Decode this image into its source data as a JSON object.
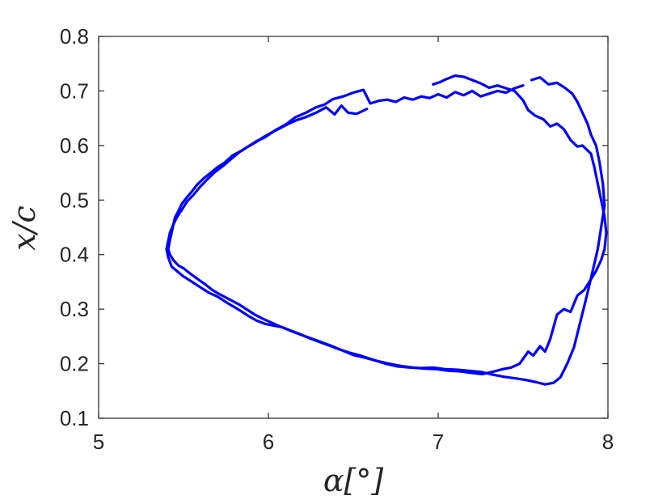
{
  "chart_data": {
    "type": "line",
    "title": "",
    "xlabel": "α[°]",
    "ylabel": "x/c",
    "xlim": [
      5,
      8
    ],
    "ylim": [
      0.1,
      0.8
    ],
    "xticks": [
      "5",
      "6",
      "7",
      "8"
    ],
    "yticks": [
      "0.1",
      "0.2",
      "0.3",
      "0.4",
      "0.5",
      "0.6",
      "0.7",
      "0.8"
    ],
    "grid": false,
    "legend": "none",
    "line_color": "#0000ff",
    "series": [
      {
        "values_xy": [
          [
            6.58,
            0.667
          ],
          [
            6.52,
            0.658
          ],
          [
            6.47,
            0.66
          ],
          [
            6.43,
            0.673
          ],
          [
            6.39,
            0.657
          ],
          [
            6.34,
            0.67
          ],
          [
            6.28,
            0.66
          ],
          [
            6.22,
            0.652
          ],
          [
            6.17,
            0.647
          ],
          [
            6.12,
            0.64
          ],
          [
            6.07,
            0.632
          ],
          [
            6.02,
            0.624
          ],
          [
            5.97,
            0.615
          ],
          [
            5.92,
            0.605
          ],
          [
            5.88,
            0.598
          ],
          [
            5.83,
            0.588
          ],
          [
            5.78,
            0.575
          ],
          [
            5.73,
            0.562
          ],
          [
            5.68,
            0.55
          ],
          [
            5.64,
            0.538
          ],
          [
            5.6,
            0.525
          ],
          [
            5.56,
            0.51
          ],
          [
            5.52,
            0.497
          ],
          [
            5.49,
            0.482
          ],
          [
            5.46,
            0.468
          ],
          [
            5.44,
            0.455
          ],
          [
            5.42,
            0.44
          ],
          [
            5.41,
            0.425
          ],
          [
            5.4,
            0.41
          ],
          [
            5.41,
            0.395
          ],
          [
            5.43,
            0.378
          ],
          [
            5.46,
            0.37
          ],
          [
            5.5,
            0.36
          ],
          [
            5.55,
            0.35
          ],
          [
            5.6,
            0.34
          ],
          [
            5.65,
            0.33
          ],
          [
            5.7,
            0.323
          ],
          [
            5.76,
            0.311
          ],
          [
            5.82,
            0.3
          ],
          [
            5.88,
            0.288
          ],
          [
            5.93,
            0.279
          ],
          [
            5.98,
            0.273
          ],
          [
            6.03,
            0.27
          ],
          [
            6.08,
            0.267
          ],
          [
            6.15,
            0.258
          ],
          [
            6.22,
            0.25
          ],
          [
            6.29,
            0.242
          ],
          [
            6.36,
            0.234
          ],
          [
            6.43,
            0.225
          ],
          [
            6.5,
            0.216
          ],
          [
            6.57,
            0.211
          ],
          [
            6.64,
            0.205
          ],
          [
            6.71,
            0.2
          ],
          [
            6.78,
            0.196
          ],
          [
            6.85,
            0.193
          ],
          [
            6.92,
            0.191
          ],
          [
            6.99,
            0.19
          ],
          [
            7.06,
            0.187
          ],
          [
            7.13,
            0.186
          ],
          [
            7.2,
            0.183
          ],
          [
            7.26,
            0.181
          ],
          [
            7.32,
            0.185
          ],
          [
            7.38,
            0.19
          ],
          [
            7.43,
            0.193
          ],
          [
            7.48,
            0.2
          ],
          [
            7.53,
            0.222
          ],
          [
            7.56,
            0.215
          ],
          [
            7.6,
            0.232
          ],
          [
            7.63,
            0.222
          ],
          [
            7.66,
            0.245
          ],
          [
            7.7,
            0.29
          ],
          [
            7.74,
            0.3
          ],
          [
            7.78,
            0.295
          ],
          [
            7.82,
            0.325
          ],
          [
            7.86,
            0.335
          ],
          [
            7.9,
            0.355
          ],
          [
            7.93,
            0.37
          ],
          [
            7.96,
            0.39
          ],
          [
            7.98,
            0.41
          ],
          [
            7.99,
            0.44
          ],
          [
            7.98,
            0.47
          ],
          [
            7.96,
            0.5
          ],
          [
            7.94,
            0.53
          ],
          [
            7.92,
            0.56
          ],
          [
            7.9,
            0.585
          ],
          [
            7.85,
            0.6
          ],
          [
            7.82,
            0.598
          ],
          [
            7.78,
            0.61
          ],
          [
            7.74,
            0.63
          ],
          [
            7.7,
            0.64
          ],
          [
            7.66,
            0.635
          ],
          [
            7.62,
            0.648
          ],
          [
            7.57,
            0.655
          ],
          [
            7.53,
            0.665
          ],
          [
            7.5,
            0.683
          ],
          [
            7.45,
            0.7
          ],
          [
            7.4,
            0.705
          ],
          [
            7.35,
            0.71
          ],
          [
            7.3,
            0.706
          ],
          [
            7.25,
            0.714
          ],
          [
            7.2,
            0.72
          ],
          [
            7.15,
            0.726
          ],
          [
            7.1,
            0.728
          ],
          [
            7.05,
            0.722
          ],
          [
            7.01,
            0.716
          ],
          [
            6.97,
            0.712
          ]
        ]
      },
      {
        "values_xy": [
          [
            7.5,
            0.71
          ],
          [
            7.45,
            0.705
          ],
          [
            7.4,
            0.697
          ],
          [
            7.35,
            0.7
          ],
          [
            7.3,
            0.695
          ],
          [
            7.25,
            0.69
          ],
          [
            7.2,
            0.7
          ],
          [
            7.15,
            0.692
          ],
          [
            7.1,
            0.698
          ],
          [
            7.05,
            0.688
          ],
          [
            7.0,
            0.694
          ],
          [
            6.95,
            0.687
          ],
          [
            6.9,
            0.69
          ],
          [
            6.85,
            0.684
          ],
          [
            6.8,
            0.688
          ],
          [
            6.75,
            0.68
          ],
          [
            6.7,
            0.684
          ],
          [
            6.65,
            0.682
          ],
          [
            6.6,
            0.677
          ],
          [
            6.56,
            0.702
          ],
          [
            6.5,
            0.697
          ],
          [
            6.44,
            0.69
          ],
          [
            6.38,
            0.685
          ],
          [
            6.33,
            0.675
          ],
          [
            6.28,
            0.67
          ],
          [
            6.22,
            0.66
          ],
          [
            6.16,
            0.652
          ],
          [
            6.1,
            0.638
          ],
          [
            6.04,
            0.628
          ],
          [
            5.98,
            0.615
          ],
          [
            5.93,
            0.608
          ],
          [
            5.88,
            0.598
          ],
          [
            5.84,
            0.59
          ],
          [
            5.79,
            0.582
          ],
          [
            5.74,
            0.568
          ],
          [
            5.7,
            0.56
          ],
          [
            5.66,
            0.55
          ],
          [
            5.62,
            0.54
          ],
          [
            5.58,
            0.528
          ],
          [
            5.55,
            0.516
          ],
          [
            5.52,
            0.505
          ],
          [
            5.49,
            0.493
          ],
          [
            5.47,
            0.48
          ],
          [
            5.45,
            0.468
          ],
          [
            5.44,
            0.455
          ],
          [
            5.43,
            0.44
          ],
          [
            5.42,
            0.427
          ],
          [
            5.41,
            0.41
          ],
          [
            5.42,
            0.4
          ],
          [
            5.44,
            0.39
          ],
          [
            5.47,
            0.38
          ],
          [
            5.5,
            0.375
          ],
          [
            5.54,
            0.365
          ],
          [
            5.58,
            0.356
          ],
          [
            5.63,
            0.345
          ],
          [
            5.67,
            0.335
          ],
          [
            5.72,
            0.326
          ],
          [
            5.77,
            0.318
          ],
          [
            5.83,
            0.308
          ],
          [
            5.88,
            0.298
          ],
          [
            5.92,
            0.29
          ],
          [
            5.97,
            0.282
          ],
          [
            6.02,
            0.275
          ],
          [
            6.07,
            0.268
          ],
          [
            6.12,
            0.262
          ],
          [
            6.18,
            0.255
          ],
          [
            6.24,
            0.247
          ],
          [
            6.3,
            0.24
          ],
          [
            6.36,
            0.233
          ],
          [
            6.42,
            0.226
          ],
          [
            6.48,
            0.22
          ],
          [
            6.55,
            0.214
          ],
          [
            6.62,
            0.207
          ],
          [
            6.69,
            0.2
          ],
          [
            6.76,
            0.195
          ],
          [
            6.83,
            0.193
          ],
          [
            6.9,
            0.192
          ],
          [
            6.97,
            0.193
          ],
          [
            7.04,
            0.19
          ],
          [
            7.11,
            0.189
          ],
          [
            7.18,
            0.187
          ],
          [
            7.25,
            0.185
          ],
          [
            7.32,
            0.18
          ],
          [
            7.39,
            0.176
          ],
          [
            7.46,
            0.173
          ],
          [
            7.52,
            0.17
          ],
          [
            7.58,
            0.166
          ],
          [
            7.63,
            0.162
          ],
          [
            7.68,
            0.165
          ],
          [
            7.72,
            0.175
          ],
          [
            7.76,
            0.2
          ],
          [
            7.8,
            0.23
          ],
          [
            7.84,
            0.28
          ],
          [
            7.88,
            0.33
          ],
          [
            7.91,
            0.37
          ],
          [
            7.94,
            0.41
          ],
          [
            7.96,
            0.45
          ],
          [
            7.98,
            0.49
          ],
          [
            7.97,
            0.53
          ],
          [
            7.95,
            0.57
          ],
          [
            7.93,
            0.6
          ],
          [
            7.9,
            0.62
          ],
          [
            7.88,
            0.64
          ],
          [
            7.85,
            0.66
          ],
          [
            7.82,
            0.68
          ],
          [
            7.79,
            0.695
          ],
          [
            7.75,
            0.705
          ],
          [
            7.7,
            0.715
          ],
          [
            7.65,
            0.712
          ],
          [
            7.6,
            0.725
          ],
          [
            7.55,
            0.72
          ]
        ]
      }
    ]
  }
}
